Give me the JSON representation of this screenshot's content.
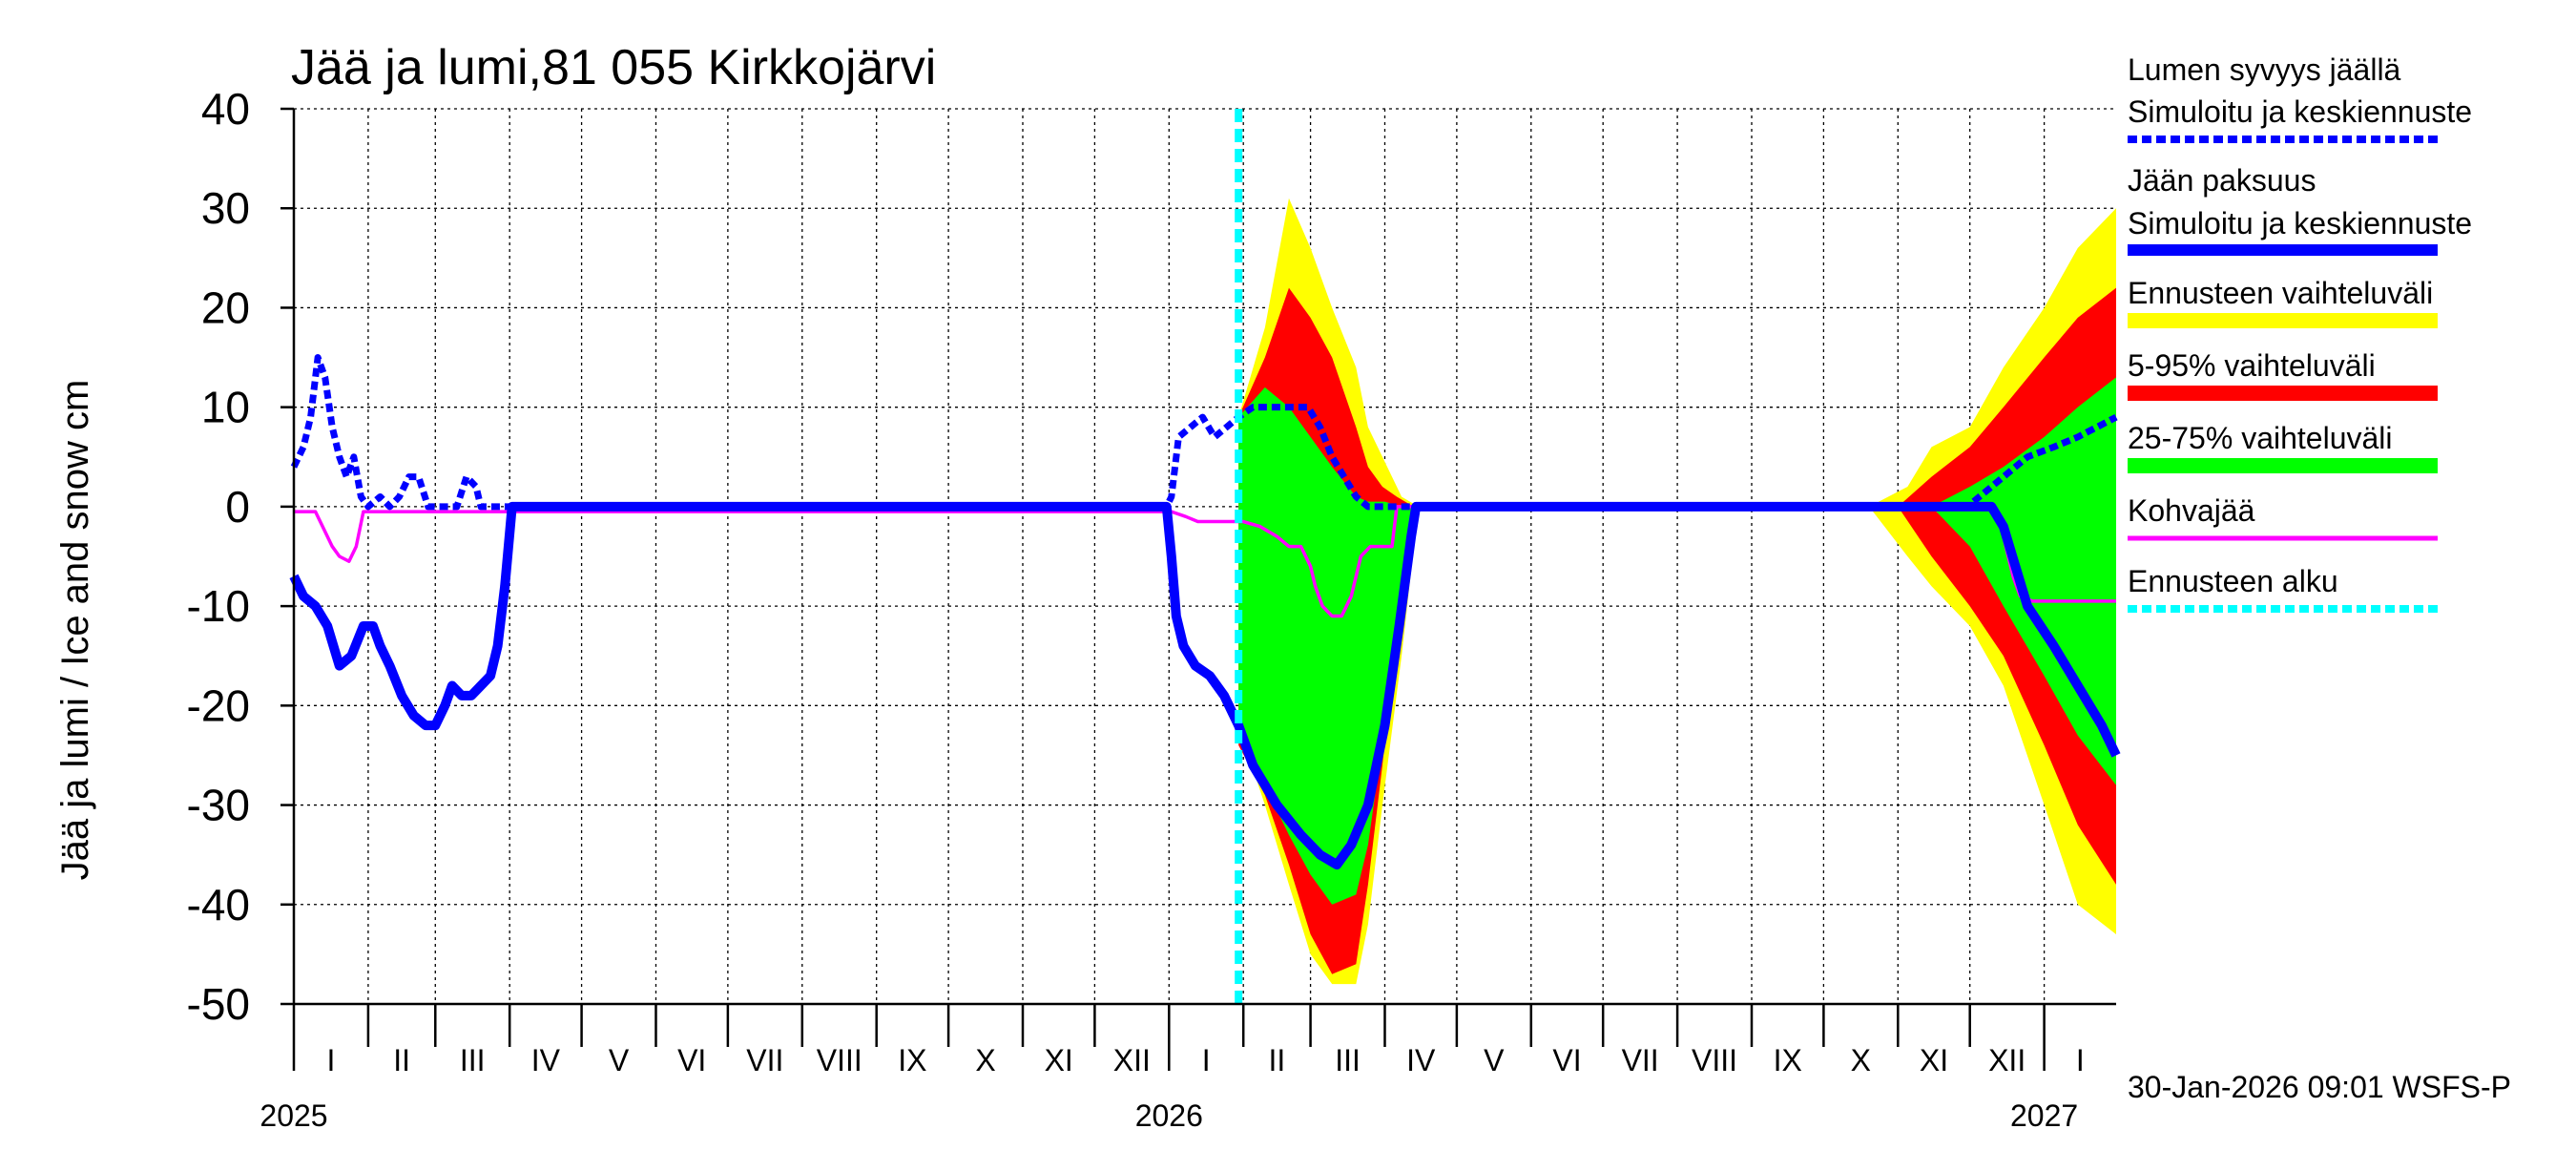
{
  "chart_data": {
    "type": "area",
    "title": "Jää ja lumi,81 055 Kirkkojärvi",
    "ylabel": "Jää ja lumi / Ice and snow    cm",
    "ylim": [
      -50,
      40
    ],
    "yticks": [
      40,
      30,
      20,
      10,
      0,
      -10,
      -20,
      -30,
      -40,
      -50
    ],
    "x_range": [
      "2025-01-01",
      "2027-01-31"
    ],
    "month_labels": [
      "I",
      "II",
      "III",
      "IV",
      "V",
      "VI",
      "VII",
      "VIII",
      "IX",
      "X",
      "XI",
      "XII",
      "I",
      "II",
      "III",
      "IV",
      "V",
      "VI",
      "VII",
      "VIII",
      "IX",
      "X",
      "XI",
      "XII",
      "I"
    ],
    "year_labels": [
      {
        "date": "2025-01-01",
        "label": "2025"
      },
      {
        "date": "2026-01-01",
        "label": "2026"
      },
      {
        "date": "2027-01-01",
        "label": "2027"
      }
    ],
    "forecast_start": "2026-01-30",
    "grid": true,
    "legend_placement": "right",
    "legend": [
      {
        "label": "Lumen syvyys jäällä",
        "label2": "Simuloitu ja keskiennuste",
        "color": "#0000ff",
        "style": "dashed"
      },
      {
        "label": "Jään paksuus",
        "label2": "Simuloitu ja keskiennuste",
        "color": "#0000ff",
        "style": "solid-thick"
      },
      {
        "label": "Ennusteen vaihteluväli",
        "color": "#ffff00",
        "style": "band"
      },
      {
        "label": "5-95% vaihteluväli",
        "color": "#ff0000",
        "style": "band"
      },
      {
        "label": "25-75% vaihteluväli",
        "color": "#00ff00",
        "style": "band"
      },
      {
        "label": "Kohvajää",
        "color": "#ff00ff",
        "style": "solid"
      },
      {
        "label": "Ennusteen alku",
        "color": "#00ffff",
        "style": "dashed"
      }
    ],
    "series": [
      {
        "name": "Lumen syvyys jäällä",
        "color": "#0000ff",
        "points": [
          [
            "2025-01-01",
            4
          ],
          [
            "2025-01-05",
            6
          ],
          [
            "2025-01-08",
            9
          ],
          [
            "2025-01-11",
            15
          ],
          [
            "2025-01-14",
            13
          ],
          [
            "2025-01-17",
            8
          ],
          [
            "2025-01-20",
            5
          ],
          [
            "2025-01-23",
            3
          ],
          [
            "2025-01-26",
            5
          ],
          [
            "2025-01-29",
            1
          ],
          [
            "2025-02-01",
            0
          ],
          [
            "2025-02-06",
            1
          ],
          [
            "2025-02-10",
            0
          ],
          [
            "2025-02-14",
            1
          ],
          [
            "2025-02-18",
            3
          ],
          [
            "2025-02-22",
            3
          ],
          [
            "2025-02-26",
            0
          ],
          [
            "2025-03-05",
            0
          ],
          [
            "2025-03-10",
            0
          ],
          [
            "2025-03-14",
            3
          ],
          [
            "2025-03-18",
            2
          ],
          [
            "2025-03-20",
            0
          ],
          [
            "2025-12-31",
            0
          ],
          [
            "2026-01-02",
            1
          ],
          [
            "2026-01-05",
            7
          ],
          [
            "2026-01-10",
            8
          ],
          [
            "2026-01-15",
            9
          ],
          [
            "2026-01-20",
            7
          ],
          [
            "2026-01-25",
            8
          ],
          [
            "2026-01-30",
            9
          ],
          [
            "2026-02-05",
            10
          ],
          [
            "2026-02-10",
            10
          ],
          [
            "2026-02-20",
            10
          ],
          [
            "2026-02-28",
            10
          ],
          [
            "2026-03-05",
            8
          ],
          [
            "2026-03-10",
            5
          ],
          [
            "2026-03-15",
            3
          ],
          [
            "2026-03-20",
            1
          ],
          [
            "2026-03-25",
            0
          ],
          [
            "2026-11-30",
            0
          ],
          [
            "2026-12-05",
            1
          ],
          [
            "2026-12-10",
            2
          ],
          [
            "2026-12-15",
            3
          ],
          [
            "2026-12-20",
            4
          ],
          [
            "2026-12-25",
            5
          ],
          [
            "2027-01-05",
            6
          ],
          [
            "2027-01-15",
            7
          ],
          [
            "2027-01-31",
            9
          ]
        ]
      },
      {
        "name": "Jään paksuus",
        "color": "#0000ff",
        "points": [
          [
            "2025-01-01",
            -7
          ],
          [
            "2025-01-05",
            -9
          ],
          [
            "2025-01-10",
            -10
          ],
          [
            "2025-01-15",
            -12
          ],
          [
            "2025-01-20",
            -16
          ],
          [
            "2025-01-25",
            -15
          ],
          [
            "2025-01-30",
            -12
          ],
          [
            "2025-02-03",
            -12
          ],
          [
            "2025-02-06",
            -14
          ],
          [
            "2025-02-10",
            -16
          ],
          [
            "2025-02-15",
            -19
          ],
          [
            "2025-02-20",
            -21
          ],
          [
            "2025-02-25",
            -22
          ],
          [
            "2025-03-01",
            -22
          ],
          [
            "2025-03-05",
            -20
          ],
          [
            "2025-03-08",
            -18
          ],
          [
            "2025-03-12",
            -19
          ],
          [
            "2025-03-16",
            -19
          ],
          [
            "2025-03-20",
            -18
          ],
          [
            "2025-03-24",
            -17
          ],
          [
            "2025-03-27",
            -14
          ],
          [
            "2025-03-30",
            -8
          ],
          [
            "2025-04-02",
            0
          ],
          [
            "2025-12-31",
            0
          ],
          [
            "2026-01-02",
            -5
          ],
          [
            "2026-01-04",
            -11
          ],
          [
            "2026-01-07",
            -14
          ],
          [
            "2026-01-12",
            -16
          ],
          [
            "2026-01-18",
            -17
          ],
          [
            "2026-01-24",
            -19
          ],
          [
            "2026-01-30",
            -22
          ],
          [
            "2026-02-05",
            -26
          ],
          [
            "2026-02-15",
            -30
          ],
          [
            "2026-02-25",
            -33
          ],
          [
            "2026-03-05",
            -35
          ],
          [
            "2026-03-12",
            -36
          ],
          [
            "2026-03-18",
            -34
          ],
          [
            "2026-03-25",
            -30
          ],
          [
            "2026-04-01",
            -22
          ],
          [
            "2026-04-07",
            -12
          ],
          [
            "2026-04-12",
            -3
          ],
          [
            "2026-04-14",
            0
          ],
          [
            "2026-12-10",
            0
          ],
          [
            "2026-12-15",
            -2
          ],
          [
            "2026-12-20",
            -6
          ],
          [
            "2026-12-25",
            -10
          ],
          [
            "2027-01-05",
            -14
          ],
          [
            "2027-01-15",
            -18
          ],
          [
            "2027-01-25",
            -22
          ],
          [
            "2027-01-31",
            -25
          ]
        ]
      },
      {
        "name": "Kohvajää",
        "color": "#ff00ff",
        "points": [
          [
            "2025-01-01",
            -0.5
          ],
          [
            "2025-01-10",
            -0.5
          ],
          [
            "2025-01-13",
            -2
          ],
          [
            "2025-01-17",
            -4
          ],
          [
            "2025-01-20",
            -5
          ],
          [
            "2025-01-24",
            -5.5
          ],
          [
            "2025-01-27",
            -4
          ],
          [
            "2025-01-30",
            -0.5
          ],
          [
            "2025-12-31",
            -0.5
          ],
          [
            "2026-01-02",
            -0.5
          ],
          [
            "2026-01-08",
            -1
          ],
          [
            "2026-01-13",
            -1.5
          ],
          [
            "2026-01-20",
            -1.5
          ],
          [
            "2026-02-01",
            -1.5
          ],
          [
            "2026-02-08",
            -2
          ],
          [
            "2026-02-15",
            -3
          ],
          [
            "2026-02-20",
            -4
          ],
          [
            "2026-02-25",
            -4
          ],
          [
            "2026-03-01",
            -6
          ],
          [
            "2026-03-03",
            -8
          ],
          [
            "2026-03-06",
            -10
          ],
          [
            "2026-03-10",
            -11
          ],
          [
            "2026-03-14",
            -11
          ],
          [
            "2026-03-18",
            -9
          ],
          [
            "2026-03-22",
            -5
          ],
          [
            "2026-03-26",
            -4
          ],
          [
            "2026-04-04",
            -4
          ],
          [
            "2026-04-06",
            0
          ],
          [
            "2026-12-10",
            0
          ],
          [
            "2026-12-13",
            -1
          ],
          [
            "2026-12-16",
            -4
          ],
          [
            "2026-12-19",
            -7
          ],
          [
            "2026-12-22",
            -9
          ],
          [
            "2026-12-27",
            -9.5
          ],
          [
            "2027-01-31",
            -9.5
          ]
        ]
      }
    ],
    "bands": [
      {
        "name": "Ennusteen vaihteluväli",
        "color": "#ffff00",
        "segments": [
          {
            "x": [
              "2026-01-30",
              "2026-02-10",
              "2026-02-20",
              "2026-03-01",
              "2026-03-10",
              "2026-03-20",
              "2026-03-25",
              "2026-03-31",
              "2026-04-08",
              "2026-04-15"
            ],
            "upper": [
              9,
              18,
              31,
              26,
              20,
              14,
              8,
              5,
              1,
              0
            ],
            "lower": [
              -22,
              -30,
              -38,
              -45,
              -48,
              -48,
              -42,
              -30,
              -15,
              0
            ]
          },
          {
            "x": [
              "2026-10-20",
              "2026-11-05",
              "2026-11-15",
              "2026-12-01",
              "2026-12-15",
              "2027-01-01",
              "2027-01-15",
              "2027-01-31"
            ],
            "upper": [
              0,
              2,
              6,
              8,
              14,
              20,
              26,
              30
            ],
            "lower": [
              0,
              -5,
              -8,
              -12,
              -18,
              -30,
              -40,
              -43
            ]
          }
        ]
      },
      {
        "name": "5-95% vaihteluväli",
        "color": "#ff0000",
        "segments": [
          {
            "x": [
              "2026-01-30",
              "2026-02-10",
              "2026-02-20",
              "2026-03-01",
              "2026-03-10",
              "2026-03-20",
              "2026-03-25",
              "2026-03-31",
              "2026-04-06",
              "2026-04-13"
            ],
            "upper": [
              9,
              15,
              22,
              19,
              15,
              8,
              4,
              2,
              1,
              0
            ],
            "lower": [
              -24,
              -29,
              -36,
              -43,
              -47,
              -46,
              -38,
              -26,
              -12,
              0
            ]
          },
          {
            "x": [
              "2026-11-01",
              "2026-11-15",
              "2026-12-01",
              "2026-12-15",
              "2027-01-01",
              "2027-01-15",
              "2027-01-31"
            ],
            "upper": [
              0,
              3,
              6,
              10,
              15,
              19,
              22
            ],
            "lower": [
              0,
              -5,
              -10,
              -15,
              -24,
              -32,
              -38
            ]
          }
        ]
      },
      {
        "name": "25-75% vaihteluväli",
        "color": "#00ff00",
        "segments": [
          {
            "x": [
              "2026-01-30",
              "2026-02-10",
              "2026-02-20",
              "2026-03-01",
              "2026-03-10",
              "2026-03-20",
              "2026-03-25",
              "2026-04-01",
              "2026-04-08",
              "2026-04-12"
            ],
            "upper": [
              9,
              12,
              10,
              7,
              4,
              1,
              0.5,
              0.5,
              0,
              0
            ],
            "lower": [
              -22,
              -28,
              -33,
              -37,
              -40,
              -39,
              -34,
              -22,
              -8,
              0
            ]
          },
          {
            "x": [
              "2026-11-15",
              "2026-12-01",
              "2026-12-15",
              "2027-01-01",
              "2027-01-15",
              "2027-01-31"
            ],
            "upper": [
              0,
              2,
              4,
              7,
              10,
              13
            ],
            "lower": [
              0,
              -4,
              -10,
              -17,
              -23,
              -28
            ]
          }
        ]
      }
    ]
  },
  "footer": {
    "timestamp": "30-Jan-2026 09:01 WSFS-P"
  }
}
